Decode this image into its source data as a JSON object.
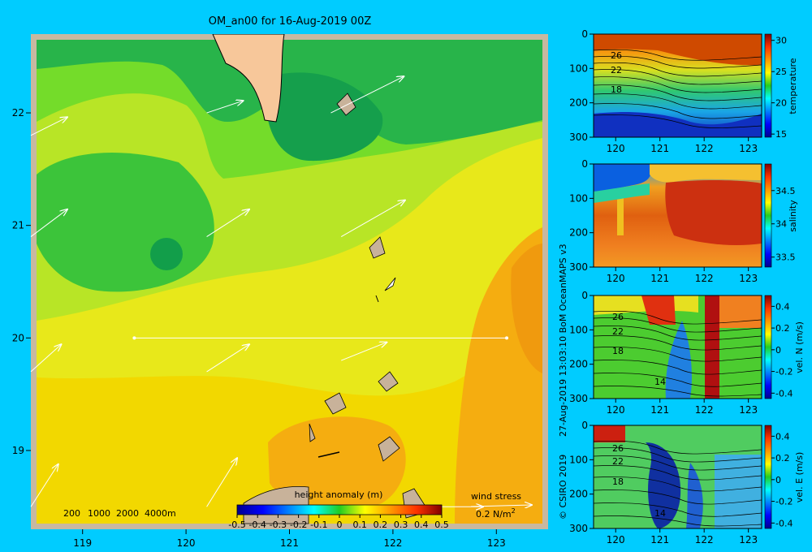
{
  "title": "OM_an00 for 16-Aug-2019 00Z",
  "credit": "27-Aug-2019 13:03:10 BoM OceanMAPS v3",
  "copyright": "© CSIRO 2019",
  "depth_legend": [
    "200",
    "1000",
    "2000",
    "4000m"
  ],
  "wind_stress_label": "wind stress",
  "wind_stress_scale": "0.2 N/m",
  "wind_stress_scale_sup": "2",
  "colors": {
    "background": "#00ccff",
    "frame": "#c8b8a0",
    "land": "#f7c79a",
    "shelf": "#c8b29a",
    "section_line": "#ffffff",
    "wind_arrow": "#ffffff"
  },
  "chart_data": [
    {
      "type": "heatmap",
      "name": "height anomaly map",
      "colorbar_title": "height anomaly (m)",
      "colorbar_ticks": [
        "-0.5",
        "-0.4",
        "-0.3",
        "-0.2",
        "-0.1",
        "0",
        "0.1",
        "0.2",
        "0.3",
        "0.4",
        "0.5"
      ],
      "clim": [
        -0.5,
        0.5
      ],
      "xlim": [
        118.5,
        123.5
      ],
      "ylim": [
        18.3,
        22.7
      ],
      "x_ticks": [
        "119",
        "120",
        "121",
        "122",
        "123"
      ],
      "y_ticks": [
        "19",
        "20",
        "21",
        "22"
      ],
      "field_regions": [
        {
          "level": 0.2,
          "description": "south-east warm anomaly"
        },
        {
          "level": 0.1,
          "description": "central band"
        },
        {
          "level": 0.0,
          "description": "northern and western plateau"
        },
        {
          "level": -0.1,
          "description": "small lows near 120,20.7 and 121.8,21.8"
        }
      ],
      "section_line": {
        "from": [
          119.5,
          20.0
        ],
        "to": [
          123.1,
          20.0
        ]
      },
      "wind_arrows": [
        {
          "x": 118.5,
          "y": 21.8,
          "u": 0.12,
          "v": 0.06
        },
        {
          "x": 120.2,
          "y": 22.0,
          "u": 0.12,
          "v": 0.04
        },
        {
          "x": 121.4,
          "y": 22.0,
          "u": 0.24,
          "v": 0.12
        },
        {
          "x": 118.5,
          "y": 20.9,
          "u": 0.12,
          "v": 0.09
        },
        {
          "x": 120.2,
          "y": 20.9,
          "u": 0.14,
          "v": 0.09
        },
        {
          "x": 121.5,
          "y": 20.9,
          "u": 0.21,
          "v": 0.12
        },
        {
          "x": 118.5,
          "y": 19.7,
          "u": 0.1,
          "v": 0.09
        },
        {
          "x": 120.2,
          "y": 19.7,
          "u": 0.14,
          "v": 0.09
        },
        {
          "x": 121.5,
          "y": 19.8,
          "u": 0.15,
          "v": 0.06
        },
        {
          "x": 118.5,
          "y": 18.5,
          "u": 0.09,
          "v": 0.14
        },
        {
          "x": 120.2,
          "y": 18.5,
          "u": 0.1,
          "v": 0.16
        },
        {
          "x": 122.4,
          "y": 18.5,
          "u": 0.16,
          "v": 0.0
        }
      ],
      "wind_stress_reference": 0.2
    },
    {
      "type": "heatmap",
      "name": "temperature section",
      "xlim": [
        119.5,
        123.3
      ],
      "ylim": [
        300,
        0
      ],
      "x_ticks": [
        "120",
        "121",
        "122",
        "123"
      ],
      "y_ticks": [
        "0",
        "100",
        "200",
        "300"
      ],
      "colorbar_label": "temperature",
      "colorbar_ticks": [
        "15",
        "20",
        "25",
        "30"
      ],
      "clim": [
        14.5,
        31
      ],
      "contour_labels": [
        "26",
        "22",
        "18"
      ]
    },
    {
      "type": "heatmap",
      "name": "salinity section",
      "xlim": [
        119.5,
        123.3
      ],
      "ylim": [
        300,
        0
      ],
      "x_ticks": [
        "120",
        "121",
        "122",
        "123"
      ],
      "y_ticks": [
        "0",
        "100",
        "200",
        "300"
      ],
      "colorbar_label": "salinity",
      "colorbar_ticks": [
        "33.5",
        "34",
        "34.5"
      ],
      "clim": [
        33.35,
        34.9
      ]
    },
    {
      "type": "heatmap",
      "name": "northward velocity section",
      "xlim": [
        119.5,
        123.3
      ],
      "ylim": [
        300,
        0
      ],
      "x_ticks": [
        "120",
        "121",
        "122",
        "123"
      ],
      "y_ticks": [
        "0",
        "100",
        "200",
        "300"
      ],
      "colorbar_label": "vel. N (m/s)",
      "colorbar_ticks": [
        "-0.4",
        "-0.2",
        "0",
        "0.2",
        "0.4"
      ],
      "clim": [
        -0.45,
        0.5
      ],
      "contour_labels": [
        "26",
        "22",
        "18",
        "14"
      ]
    },
    {
      "type": "heatmap",
      "name": "eastward velocity section",
      "xlim": [
        119.5,
        123.3
      ],
      "ylim": [
        300,
        0
      ],
      "x_ticks": [
        "120",
        "121",
        "122",
        "123"
      ],
      "y_ticks": [
        "0",
        "100",
        "200",
        "300"
      ],
      "colorbar_label": "vel. E (m/s)",
      "colorbar_ticks": [
        "-0.4",
        "-0.2",
        "0",
        "0.2",
        "0.4"
      ],
      "clim": [
        -0.45,
        0.5
      ],
      "contour_labels": [
        "26",
        "22",
        "18",
        "14"
      ]
    }
  ]
}
